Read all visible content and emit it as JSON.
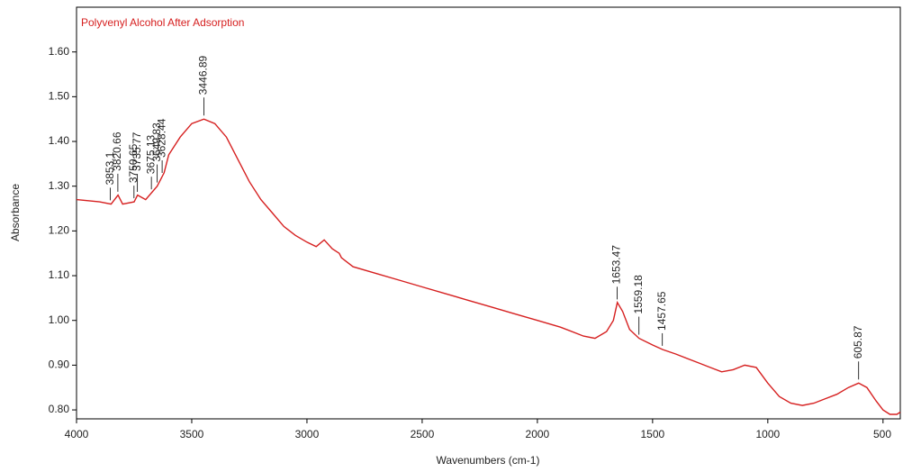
{
  "chart_data": {
    "type": "line",
    "title": "Polyvenyl Alcohol After Adsorption",
    "x_label": "Wavenumbers (cm-1)",
    "y_label": "Absorbance",
    "x": [
      4000,
      3900,
      3850,
      3820,
      3800,
      3750,
      3735,
      3700,
      3650,
      3620,
      3600,
      3550,
      3500,
      3447,
      3400,
      3350,
      3300,
      3250,
      3200,
      3150,
      3100,
      3050,
      3000,
      2960,
      2925,
      2890,
      2860,
      2850,
      2800,
      2700,
      2600,
      2500,
      2400,
      2300,
      2200,
      2100,
      2000,
      1900,
      1800,
      1750,
      1700,
      1670,
      1653,
      1630,
      1600,
      1559,
      1500,
      1457,
      1400,
      1300,
      1250,
      1200,
      1150,
      1100,
      1050,
      1000,
      950,
      900,
      850,
      800,
      750,
      700,
      650,
      606,
      570,
      530,
      500,
      470,
      440,
      425
    ],
    "series": [
      {
        "name": "Polyvinyl alcohol",
        "color": "#d62020",
        "values": [
          1.27,
          1.265,
          1.26,
          1.28,
          1.26,
          1.265,
          1.28,
          1.27,
          1.3,
          1.33,
          1.37,
          1.41,
          1.44,
          1.45,
          1.44,
          1.41,
          1.36,
          1.31,
          1.27,
          1.24,
          1.21,
          1.19,
          1.175,
          1.165,
          1.18,
          1.16,
          1.15,
          1.14,
          1.12,
          1.105,
          1.09,
          1.075,
          1.06,
          1.045,
          1.03,
          1.015,
          1.0,
          0.985,
          0.965,
          0.96,
          0.975,
          1.0,
          1.04,
          1.02,
          0.98,
          0.96,
          0.945,
          0.935,
          0.925,
          0.905,
          0.895,
          0.885,
          0.89,
          0.9,
          0.895,
          0.86,
          0.83,
          0.815,
          0.81,
          0.815,
          0.825,
          0.835,
          0.85,
          0.86,
          0.85,
          0.82,
          0.8,
          0.79,
          0.79,
          0.795
        ]
      }
    ],
    "peaks": [
      3853.1,
      3820.66,
      3750.65,
      3735.77,
      3675.13,
      3649.83,
      3628.44,
      3446.89,
      1653.47,
      1559.18,
      1457.65,
      605.87
    ],
    "xlim": [
      4000,
      425
    ],
    "xticks": [
      4000,
      3500,
      3000,
      2500,
      2000,
      1500,
      1000,
      500
    ],
    "ylim": [
      0.78,
      1.7
    ],
    "yticks": [
      {
        "value": 0.8,
        "label": "0.80"
      },
      {
        "value": 0.9,
        "label": "0.90"
      },
      {
        "value": 1.0,
        "label": "1.00"
      },
      {
        "value": 1.1,
        "label": "1.10"
      },
      {
        "value": 1.2,
        "label": "1.20"
      },
      {
        "value": 1.3,
        "label": "1.30"
      },
      {
        "value": 1.4,
        "label": "1.40"
      },
      {
        "value": 1.5,
        "label": "1.50"
      },
      {
        "value": 1.6,
        "label": "1.60"
      }
    ],
    "grid": false
  }
}
